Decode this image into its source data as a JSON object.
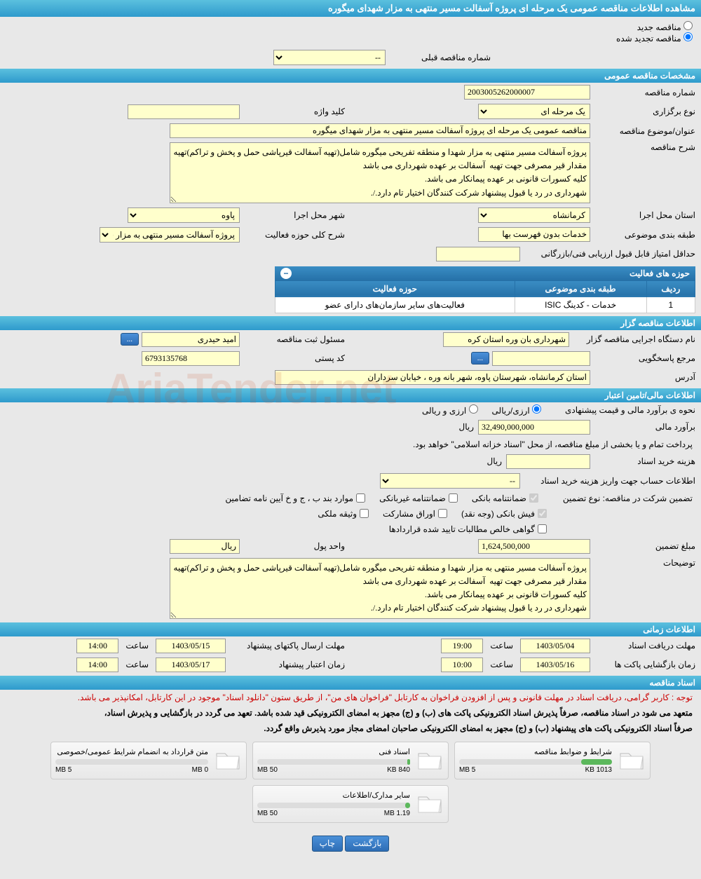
{
  "page_title": "مشاهده اطلاعات مناقصه عمومی یک مرحله ای پروژه آسفالت مسیر منتهی به مزار شهدای میگوره",
  "radio": {
    "new_tender": "مناقصه جدید",
    "renewed_tender": "مناقصه تجدید شده",
    "prev_number_label": "شماره مناقصه قبلی",
    "prev_number_value": "--"
  },
  "sections": {
    "general": "مشخصات مناقصه عمومی",
    "tenderer": "اطلاعات مناقصه گزار",
    "financial": "اطلاعات مالی/تامین اعتبار",
    "time": "اطلاعات زمانی",
    "docs": "اسناد مناقصه"
  },
  "general": {
    "number_label": "شماره مناقصه",
    "number_value": "2003005262000007",
    "type_label": "نوع برگزاری",
    "type_value": "یک مرحله ای",
    "keyword_label": "کلید واژه",
    "keyword_value": "",
    "subject_label": "عنوان/موضوع مناقصه",
    "subject_value": "مناقصه عمومی یک مرحله ای پروژه آسفالت مسیر منتهی به مزار شهدای میگوره",
    "desc_label": "شرح مناقصه",
    "desc_value": "پروژه آسفالت مسیر منتهی به مزار شهدا و منطقه تفریحی میگوره شامل(تهیه آسفالت قیرپاشی حمل و پخش و تراکم)تهیه مقدار قیر مصرفی جهت تهیه  آسفالت بر عهده شهرداری می باشد\nکلیه کسورات قانونی بر عهده پیمانکار می باشد.\nشهرداری در رد یا قبول پیشنهاد شرکت کنندگان اختیار تام دارد./.",
    "province_label": "استان محل اجرا",
    "province_value": "کرمانشاه",
    "city_label": "شهر محل اجرا",
    "city_value": "پاوه",
    "category_label": "طبقه بندی موضوعی",
    "category_value": "خدمات بدون فهرست بها",
    "scope_label": "شرح کلی حوزه فعالیت",
    "scope_value": "پروژه آسفالت مسیر منتهی به مزار شهدا و",
    "min_score_label": "حداقل امتیاز قابل قبول ارزیابی فنی/بازرگانی"
  },
  "table": {
    "title": "حوزه های فعالیت",
    "cols": [
      "ردیف",
      "طبقه بندی موضوعی",
      "حوزه فعالیت"
    ],
    "rows": [
      [
        "1",
        "خدمات - کدینگ ISIC",
        "فعالیت‌های سایر سازمان‌های دارای عضو"
      ]
    ]
  },
  "tenderer": {
    "org_label": "نام دستگاه اجرایی مناقصه گزار",
    "org_value": "شهرداری بان وره استان کره",
    "registrar_label": "مسئول ثبت مناقصه",
    "registrar_value": "امید حیدری",
    "response_label": "مرجع پاسخگویی",
    "response_value": "",
    "postal_label": "کد پستی",
    "postal_value": "6793135768",
    "address_label": "آدرس",
    "address_value": "استان کرمانشاه، شهرستان پاوه، شهر بانه وره ، خیابان سرداران"
  },
  "financial": {
    "estimate_method_label": "نحوه ی برآورد مالی و قیمت پیشنهادی",
    "method_arz_rial": "ارزی/ریالی",
    "method_arz": "ارزی و ریالی",
    "estimate_label": "برآورد مالی",
    "estimate_value": "32,490,000,000",
    "unit_rial": "ریال",
    "payment_note": "پرداخت تمام و یا بخشی از مبلغ مناقصه، از محل \"اسناد خزانه اسلامی\" خواهد بود.",
    "doc_cost_label": "هزینه خرید اسناد",
    "account_info_label": "اطلاعات حساب جهت واریز هزینه خرید اسناد",
    "account_value": "--",
    "guarantee_label": "تضمین شرکت در مناقصه:   نوع تضمین",
    "gtype_bank": "ضمانتنامه بانکی",
    "gtype_nonbank": "ضمانتنامه غیربانکی",
    "gtype_cases": "موارد بند ب ، ج و خ آیین نامه تضامین",
    "gtype_cash": "فیش بانکی (وجه نقد)",
    "gtype_bonds": "اوراق مشارکت",
    "gtype_property": "وثیقه ملکی",
    "gtype_cert": "گواهی خالص مطالبات تایید شده قراردادها",
    "guarantee_amount_label": "مبلغ تضمین",
    "guarantee_amount_value": "1,624,500,000",
    "currency_label": "واحد پول",
    "currency_value": "ریال",
    "notes_label": "توضیحات",
    "notes_value": "پروژه آسفالت مسیر منتهی به مزار شهدا و منطقه تفریحی میگوره شامل(تهیه آسفالت قیرپاشی حمل و پخش و تراکم)تهیه مقدار قیر مصرفی جهت تهیه  آسفالت بر عهده شهرداری می باشد\nکلیه کسورات قانونی بر عهده پیمانکار می باشد.\nشهرداری در رد یا قبول پیشنهاد شرکت کنندگان اختیار تام دارد./."
  },
  "time": {
    "receive_docs_label": "مهلت دریافت اسناد",
    "receive_docs_date": "1403/05/04",
    "receive_docs_time_label": "ساعت",
    "receive_docs_time": "19:00",
    "submit_label": "مهلت ارسال پاکتهای پیشنهاد",
    "submit_date": "1403/05/15",
    "submit_time": "14:00",
    "open_label": "زمان بازگشایی پاکت ها",
    "open_date": "1403/05/16",
    "open_time": "10:00",
    "validity_label": "زمان اعتبار پیشنهاد",
    "validity_date": "1403/05/17",
    "validity_time": "14:00"
  },
  "docs": {
    "note_red": "توجه : کاربر گرامی، دریافت اسناد در مهلت قانونی و پس از افزودن فراخوان به کارتابل \"فراخوان های من\"، از طریق ستون \"دانلود اسناد\" موجود در این کارتابل، امکانپذیر می باشد.",
    "note_bold1": "متعهد می شود در اسناد مناقصه، صرفاً پذیرش اسناد الکترونیکی پاکت های (ب) و (ج) مجهز به امضای الکترونیکی قید شده باشد. تعهد می گردد در بازگشایی و پذیرش اسناد،",
    "note_bold2": "صرفاً اسناد الکترونیکی پاکت های پیشنهاد (ب) و (ج) مجهز به امضای الکترونیکی صاحبان امضای مجاز مورد پذیرش واقع گردد.",
    "items": [
      {
        "title": "شرایط و ضوابط مناقصه",
        "used": "1013 KB",
        "max": "5 MB",
        "pct": 20
      },
      {
        "title": "اسناد فنی",
        "used": "840 KB",
        "max": "50 MB",
        "pct": 2
      },
      {
        "title": "متن قرارداد به انضمام شرایط عمومی/خصوصی",
        "used": "0 MB",
        "max": "5 MB",
        "pct": 0
      },
      {
        "title": "سایر مدارک/اطلاعات",
        "used": "1.19 MB",
        "max": "50 MB",
        "pct": 3
      }
    ]
  },
  "buttons": {
    "back": "بازگشت",
    "print": "چاپ",
    "dots": "..."
  },
  "watermark": "AriaTender.net"
}
